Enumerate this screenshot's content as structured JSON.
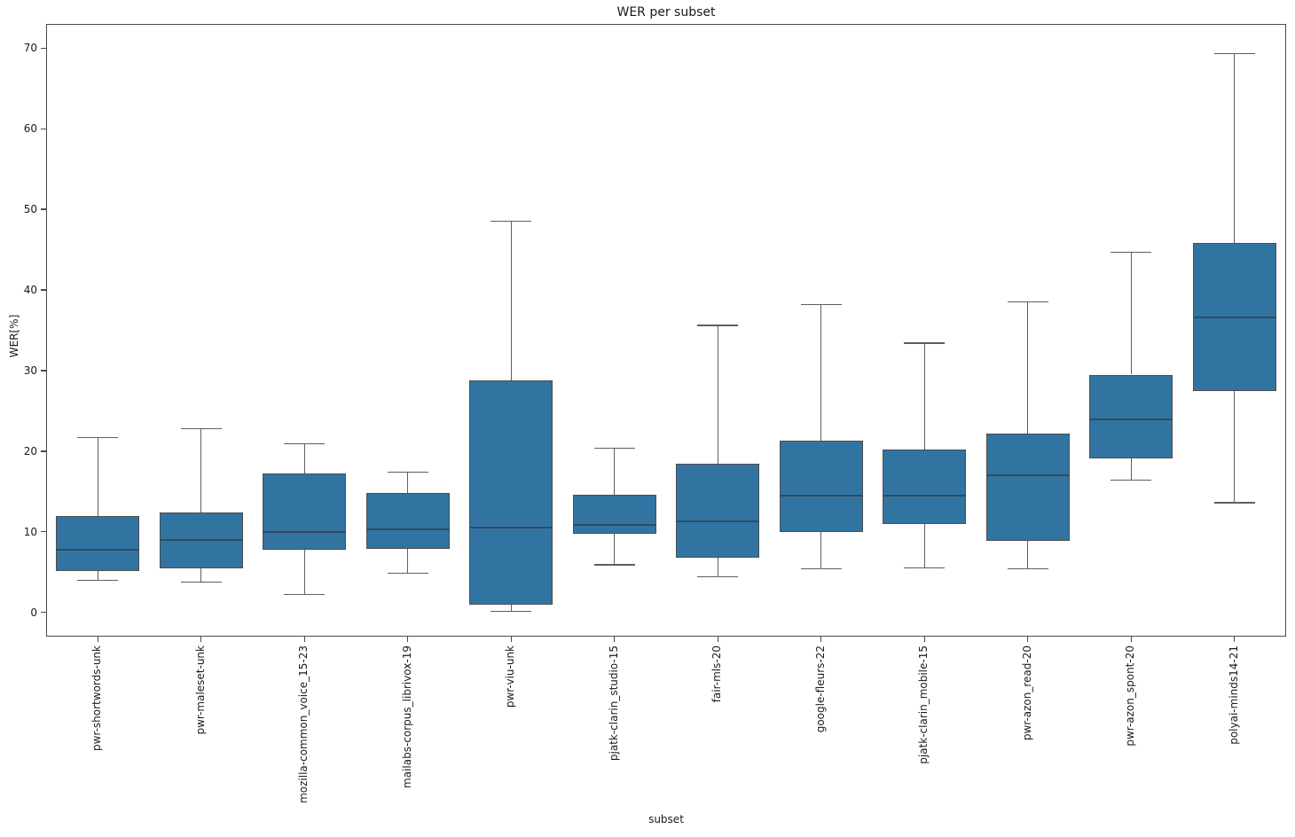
{
  "chart_data": {
    "type": "box",
    "title": "WER per subset",
    "xlabel": "subset",
    "ylabel": "WER[%]",
    "ylim": [
      -3,
      73
    ],
    "yticks": [
      0,
      10,
      20,
      30,
      40,
      50,
      60,
      70
    ],
    "grid": false,
    "legend": "none",
    "colors": {
      "box_fill": "#3274a1",
      "box_edge": "#4d4d4d",
      "whisker": "#5e5e5e",
      "median": "#34495c",
      "spine": "#4a4a4a",
      "text": "#1a1a1a",
      "background": "#ffffff"
    },
    "series": [
      {
        "label": "pwr-shortwords-unk",
        "whisker_low": 4.0,
        "q1": 5.1,
        "median": 7.8,
        "q3": 12.0,
        "whisker_high": 21.7
      },
      {
        "label": "pwr-maleset-unk",
        "whisker_low": 3.8,
        "q1": 5.5,
        "median": 9.0,
        "q3": 12.4,
        "whisker_high": 22.8
      },
      {
        "label": "mozilla-common_voice_15-23",
        "whisker_low": 2.2,
        "q1": 7.8,
        "median": 10.0,
        "q3": 17.2,
        "whisker_high": 20.9
      },
      {
        "label": "mailabs-corpus_librivox-19",
        "whisker_low": 4.9,
        "q1": 7.9,
        "median": 10.3,
        "q3": 14.8,
        "whisker_high": 17.4
      },
      {
        "label": "pwr-viu-unk",
        "whisker_low": 0.1,
        "q1": 1.0,
        "median": 10.5,
        "q3": 28.8,
        "whisker_high": 48.5
      },
      {
        "label": "pjatk-clarin_studio-15",
        "whisker_low": 5.9,
        "q1": 9.8,
        "median": 10.9,
        "q3": 14.6,
        "whisker_high": 20.4
      },
      {
        "label": "fair-mls-20",
        "whisker_low": 4.4,
        "q1": 6.8,
        "median": 11.3,
        "q3": 18.5,
        "whisker_high": 35.6
      },
      {
        "label": "google-fleurs-22",
        "whisker_low": 5.4,
        "q1": 10.0,
        "median": 14.5,
        "q3": 21.3,
        "whisker_high": 38.2
      },
      {
        "label": "pjatk-clarin_mobile-15",
        "whisker_low": 5.5,
        "q1": 11.0,
        "median": 14.5,
        "q3": 20.2,
        "whisker_high": 33.4
      },
      {
        "label": "pwr-azon_read-20",
        "whisker_low": 5.4,
        "q1": 8.9,
        "median": 17.0,
        "q3": 22.2,
        "whisker_high": 38.5
      },
      {
        "label": "pwr-azon_spont-20",
        "whisker_low": 16.4,
        "q1": 19.1,
        "median": 24.0,
        "q3": 29.5,
        "whisker_high": 44.7
      },
      {
        "label": "polyai-minds14-21",
        "whisker_low": 13.6,
        "q1": 27.5,
        "median": 36.6,
        "q3": 45.8,
        "whisker_high": 69.3
      }
    ]
  }
}
